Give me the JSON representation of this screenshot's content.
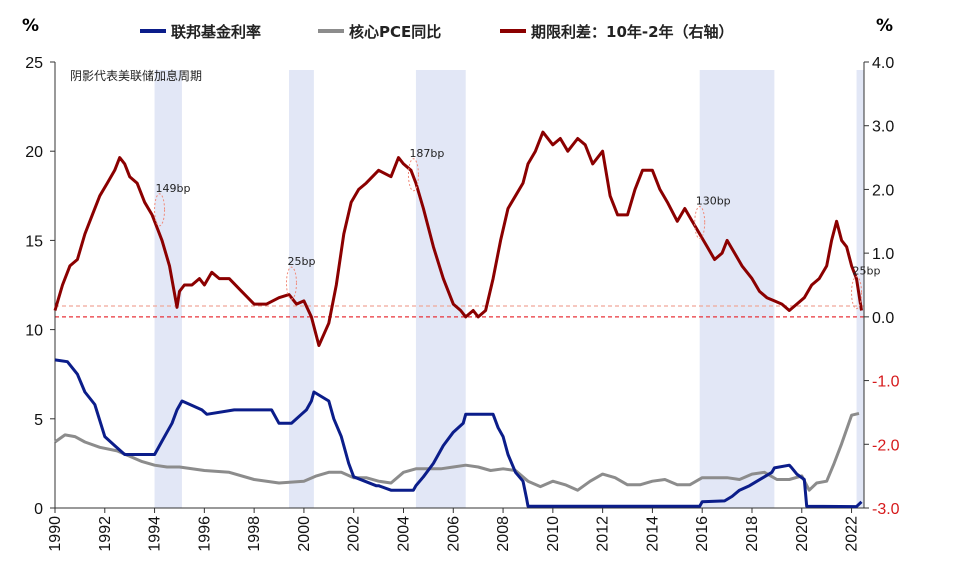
{
  "chart_data": {
    "type": "line",
    "left_unit": "%",
    "right_unit": "%",
    "note": "阴影代表美联储加息周期",
    "y_left": {
      "min": 0,
      "max": 25,
      "ticks": [
        "0",
        "5",
        "10",
        "15",
        "20",
        "25"
      ]
    },
    "y_right": {
      "min": -3.0,
      "max": 4.0,
      "ticks": [
        "-3.0",
        "-2.0",
        "-1.0",
        "0.0",
        "1.0",
        "2.0",
        "3.0",
        "4.0"
      ]
    },
    "x_range": [
      1990,
      2022.5
    ],
    "x_ticks": [
      "1990",
      "1992",
      "1994",
      "1996",
      "1998",
      "2000",
      "2002",
      "2004",
      "2006",
      "2008",
      "2010",
      "2012",
      "2014",
      "2016",
      "2018",
      "2020",
      "2022"
    ],
    "hike_cycles": [
      {
        "start": 1994.0,
        "end": 1995.1
      },
      {
        "start": 1999.4,
        "end": 2000.4
      },
      {
        "start": 2004.5,
        "end": 2006.5
      },
      {
        "start": 2015.9,
        "end": 2018.9
      },
      {
        "start": 2022.2,
        "end": 2022.5
      }
    ],
    "annotations": [
      {
        "text": "149bp",
        "x": 1994.2,
        "y_right": 1.9
      },
      {
        "text": "25bp",
        "x": 1999.5,
        "y_right": 0.75
      },
      {
        "text": "187bp",
        "x": 2004.4,
        "y_right": 2.45
      },
      {
        "text": "130bp",
        "x": 2015.9,
        "y_right": 1.7
      },
      {
        "text": "25bp",
        "x": 2022.2,
        "y_right": 0.6
      }
    ],
    "reference_lines_right": [
      {
        "y": 0.0,
        "color": "#e8333a"
      },
      {
        "y": 0.17,
        "color": "#f0a89a"
      }
    ],
    "series": [
      {
        "name": "联邦基金利率",
        "axis": "left",
        "color": "#0b1d8a",
        "x": [
          1990.0,
          1990.5,
          1990.9,
          1991.2,
          1991.6,
          1992.0,
          1992.4,
          1992.8,
          1993.5,
          1994.0,
          1994.1,
          1994.3,
          1994.5,
          1994.7,
          1994.9,
          1995.1,
          1995.5,
          1995.9,
          1996.1,
          1997.2,
          1998.7,
          1998.9,
          1999.0,
          1999.5,
          1999.7,
          1999.9,
          2000.1,
          2000.3,
          2000.4,
          2001.0,
          2001.2,
          2001.5,
          2001.8,
          2002.0,
          2002.9,
          2003.0,
          2003.5,
          2004.4,
          2004.5,
          2004.8,
          2005.2,
          2005.6,
          2006.0,
          2006.4,
          2006.5,
          2007.6,
          2007.8,
          2008.0,
          2008.2,
          2008.5,
          2008.8,
          2008.95,
          2009.0,
          2015.9,
          2016.0,
          2016.9,
          2017.2,
          2017.5,
          2017.9,
          2018.2,
          2018.5,
          2018.8,
          2018.9,
          2019.5,
          2019.6,
          2019.8,
          2020.1,
          2020.2,
          2022.2,
          2022.4
        ],
        "y": [
          8.3,
          8.2,
          7.5,
          6.5,
          5.8,
          4.0,
          3.5,
          3.0,
          3.0,
          3.0,
          3.25,
          3.75,
          4.25,
          4.75,
          5.5,
          6.0,
          5.75,
          5.5,
          5.25,
          5.5,
          5.5,
          5.0,
          4.75,
          4.75,
          5.0,
          5.25,
          5.5,
          6.0,
          6.5,
          6.0,
          5.0,
          4.0,
          2.5,
          1.75,
          1.25,
          1.25,
          1.0,
          1.0,
          1.25,
          1.75,
          2.5,
          3.5,
          4.25,
          4.75,
          5.25,
          5.25,
          4.5,
          4.0,
          3.0,
          2.0,
          1.5,
          0.5,
          0.1,
          0.1,
          0.35,
          0.4,
          0.65,
          1.0,
          1.25,
          1.5,
          1.75,
          2.0,
          2.25,
          2.4,
          2.25,
          1.9,
          1.6,
          0.1,
          0.08,
          0.35
        ]
      },
      {
        "name": "核心PCE同比",
        "axis": "left",
        "color": "#8c8c8c",
        "x": [
          1990.0,
          1990.4,
          1990.8,
          1991.2,
          1991.8,
          1992.5,
          1993.0,
          1993.5,
          1994.0,
          1994.5,
          1995.0,
          1996.0,
          1997.0,
          1998.0,
          1999.0,
          2000.0,
          2000.5,
          2001.0,
          2001.5,
          2002.0,
          2002.5,
          2003.0,
          2003.5,
          2004.0,
          2004.5,
          2005.0,
          2005.5,
          2006.0,
          2006.5,
          2007.0,
          2007.5,
          2008.0,
          2008.5,
          2009.0,
          2009.5,
          2010.0,
          2010.5,
          2011.0,
          2011.5,
          2012.0,
          2012.5,
          2013.0,
          2013.5,
          2014.0,
          2014.5,
          2015.0,
          2015.5,
          2016.0,
          2016.5,
          2017.0,
          2017.5,
          2018.0,
          2018.5,
          2019.0,
          2019.5,
          2020.0,
          2020.3,
          2020.6,
          2021.0,
          2021.3,
          2021.6,
          2022.0,
          2022.3
        ],
        "y": [
          3.7,
          4.1,
          4.0,
          3.7,
          3.4,
          3.2,
          2.9,
          2.6,
          2.4,
          2.3,
          2.3,
          2.1,
          2.0,
          1.6,
          1.4,
          1.5,
          1.8,
          2.0,
          2.0,
          1.7,
          1.7,
          1.5,
          1.4,
          2.0,
          2.2,
          2.2,
          2.2,
          2.3,
          2.4,
          2.3,
          2.1,
          2.2,
          2.1,
          1.5,
          1.2,
          1.5,
          1.3,
          1.0,
          1.5,
          1.9,
          1.7,
          1.3,
          1.3,
          1.5,
          1.6,
          1.3,
          1.3,
          1.7,
          1.7,
          1.7,
          1.6,
          1.9,
          2.0,
          1.6,
          1.6,
          1.8,
          1.0,
          1.4,
          1.5,
          2.5,
          3.6,
          5.2,
          5.3
        ]
      },
      {
        "name": "期限利差：10年-2年（右轴）",
        "axis": "right",
        "color": "#8b0000",
        "x": [
          1990.0,
          1990.3,
          1990.6,
          1990.9,
          1991.2,
          1991.5,
          1991.8,
          1992.1,
          1992.4,
          1992.6,
          1992.8,
          1993.0,
          1993.3,
          1993.6,
          1993.9,
          1994.0,
          1994.3,
          1994.6,
          1994.9,
          1995.0,
          1995.2,
          1995.5,
          1995.8,
          1996.0,
          1996.3,
          1996.6,
          1997.0,
          1997.5,
          1998.0,
          1998.5,
          1999.0,
          1999.4,
          1999.7,
          2000.0,
          2000.3,
          2000.6,
          2001.0,
          2001.3,
          2001.6,
          2001.9,
          2002.2,
          2002.5,
          2003.0,
          2003.5,
          2003.8,
          2004.0,
          2004.3,
          2004.5,
          2004.8,
          2005.2,
          2005.6,
          2006.0,
          2006.3,
          2006.5,
          2006.8,
          2007.0,
          2007.3,
          2007.6,
          2007.9,
          2008.2,
          2008.5,
          2008.8,
          2009.0,
          2009.3,
          2009.6,
          2010.0,
          2010.3,
          2010.6,
          2011.0,
          2011.3,
          2011.6,
          2012.0,
          2012.3,
          2012.6,
          2013.0,
          2013.3,
          2013.6,
          2014.0,
          2014.3,
          2014.6,
          2015.0,
          2015.3,
          2015.6,
          2015.9,
          2016.2,
          2016.5,
          2016.8,
          2017.0,
          2017.3,
          2017.6,
          2018.0,
          2018.3,
          2018.6,
          2018.9,
          2019.2,
          2019.5,
          2019.8,
          2020.1,
          2020.4,
          2020.7,
          2021.0,
          2021.2,
          2021.4,
          2021.6,
          2021.8,
          2022.0,
          2022.2,
          2022.4
        ],
        "y": [
          0.1,
          0.5,
          0.8,
          0.9,
          1.3,
          1.6,
          1.9,
          2.1,
          2.3,
          2.5,
          2.4,
          2.2,
          2.1,
          1.8,
          1.6,
          1.5,
          1.2,
          0.8,
          0.15,
          0.4,
          0.5,
          0.5,
          0.6,
          0.5,
          0.7,
          0.6,
          0.6,
          0.4,
          0.2,
          0.2,
          0.3,
          0.35,
          0.2,
          0.25,
          0.0,
          -0.45,
          -0.1,
          0.5,
          1.3,
          1.8,
          2.0,
          2.1,
          2.3,
          2.2,
          2.5,
          2.4,
          2.3,
          2.1,
          1.7,
          1.1,
          0.6,
          0.2,
          0.1,
          0.0,
          0.1,
          0.0,
          0.1,
          0.6,
          1.2,
          1.7,
          1.9,
          2.1,
          2.4,
          2.6,
          2.9,
          2.7,
          2.8,
          2.6,
          2.8,
          2.7,
          2.4,
          2.6,
          1.9,
          1.6,
          1.6,
          2.0,
          2.3,
          2.3,
          2.0,
          1.8,
          1.5,
          1.7,
          1.5,
          1.3,
          1.1,
          0.9,
          1.0,
          1.2,
          1.0,
          0.8,
          0.6,
          0.4,
          0.3,
          0.25,
          0.2,
          0.1,
          0.2,
          0.3,
          0.5,
          0.6,
          0.8,
          1.2,
          1.5,
          1.2,
          1.1,
          0.8,
          0.6,
          0.1
        ]
      }
    ]
  }
}
